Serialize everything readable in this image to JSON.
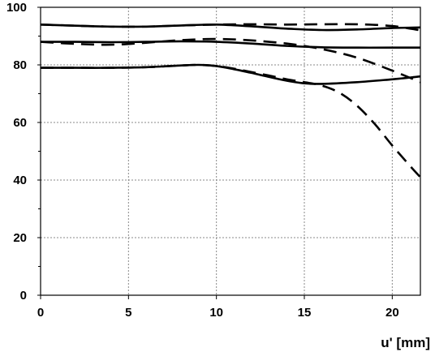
{
  "chart_data": {
    "type": "line",
    "title": "",
    "xlabel": "u' [mm]",
    "ylabel": "",
    "xlim": [
      0,
      21.6
    ],
    "ylim": [
      0,
      100
    ],
    "x_ticks": [
      0,
      5,
      10,
      15,
      20
    ],
    "y_ticks": [
      0,
      20,
      40,
      60,
      80,
      100
    ],
    "grid": true,
    "legend": "none",
    "series": [
      {
        "style": "solid",
        "color": "#000000",
        "x": [
          0,
          2,
          4,
          6,
          8,
          10,
          12,
          14,
          16,
          18,
          20,
          21.6
        ],
        "y": [
          94,
          93.6,
          93.3,
          93.3,
          93.7,
          94,
          93.4,
          92.6,
          92.1,
          92.3,
          92.8,
          93
        ]
      },
      {
        "style": "dashed",
        "color": "#000000",
        "x": [
          0,
          2,
          4,
          6,
          8,
          10,
          12,
          14,
          16,
          18,
          20,
          21.6
        ],
        "y": [
          94,
          93.6,
          93.3,
          93.3,
          93.7,
          94,
          94.1,
          94,
          94.1,
          94.1,
          93.5,
          92
        ]
      },
      {
        "style": "solid",
        "color": "#000000",
        "x": [
          0,
          2,
          4,
          6,
          8,
          10,
          12,
          14,
          16,
          18,
          20,
          21.6
        ],
        "y": [
          88,
          88,
          87.9,
          88,
          88.2,
          88,
          87.4,
          86.6,
          86.1,
          86,
          86,
          86
        ]
      },
      {
        "style": "dashed",
        "color": "#000000",
        "x": [
          0,
          2,
          4,
          6,
          8,
          10,
          12,
          14,
          16,
          18,
          20,
          21.6
        ],
        "y": [
          88,
          87.3,
          87,
          87.7,
          88.6,
          89,
          88.5,
          87.4,
          85.5,
          82.5,
          78,
          74
        ]
      },
      {
        "style": "solid",
        "color": "#000000",
        "x": [
          0,
          2,
          4,
          6,
          8,
          9,
          10,
          11,
          12,
          13,
          14,
          15,
          16,
          18,
          20,
          21.6
        ],
        "y": [
          79,
          79,
          79,
          79.2,
          79.8,
          80,
          79.6,
          78.5,
          77.2,
          75.8,
          74.5,
          73.6,
          73.4,
          74,
          75,
          76
        ]
      },
      {
        "style": "dashed",
        "color": "#000000",
        "x": [
          0,
          2,
          4,
          6,
          8,
          9,
          10,
          11,
          12,
          13,
          14,
          15,
          16,
          17,
          18,
          19,
          20,
          21,
          21.6
        ],
        "y": [
          79,
          79,
          79,
          79.2,
          79.8,
          80,
          79.6,
          78.7,
          77.5,
          76.3,
          75,
          74,
          72.8,
          70.3,
          65.8,
          59.5,
          52,
          45,
          41
        ]
      }
    ]
  }
}
